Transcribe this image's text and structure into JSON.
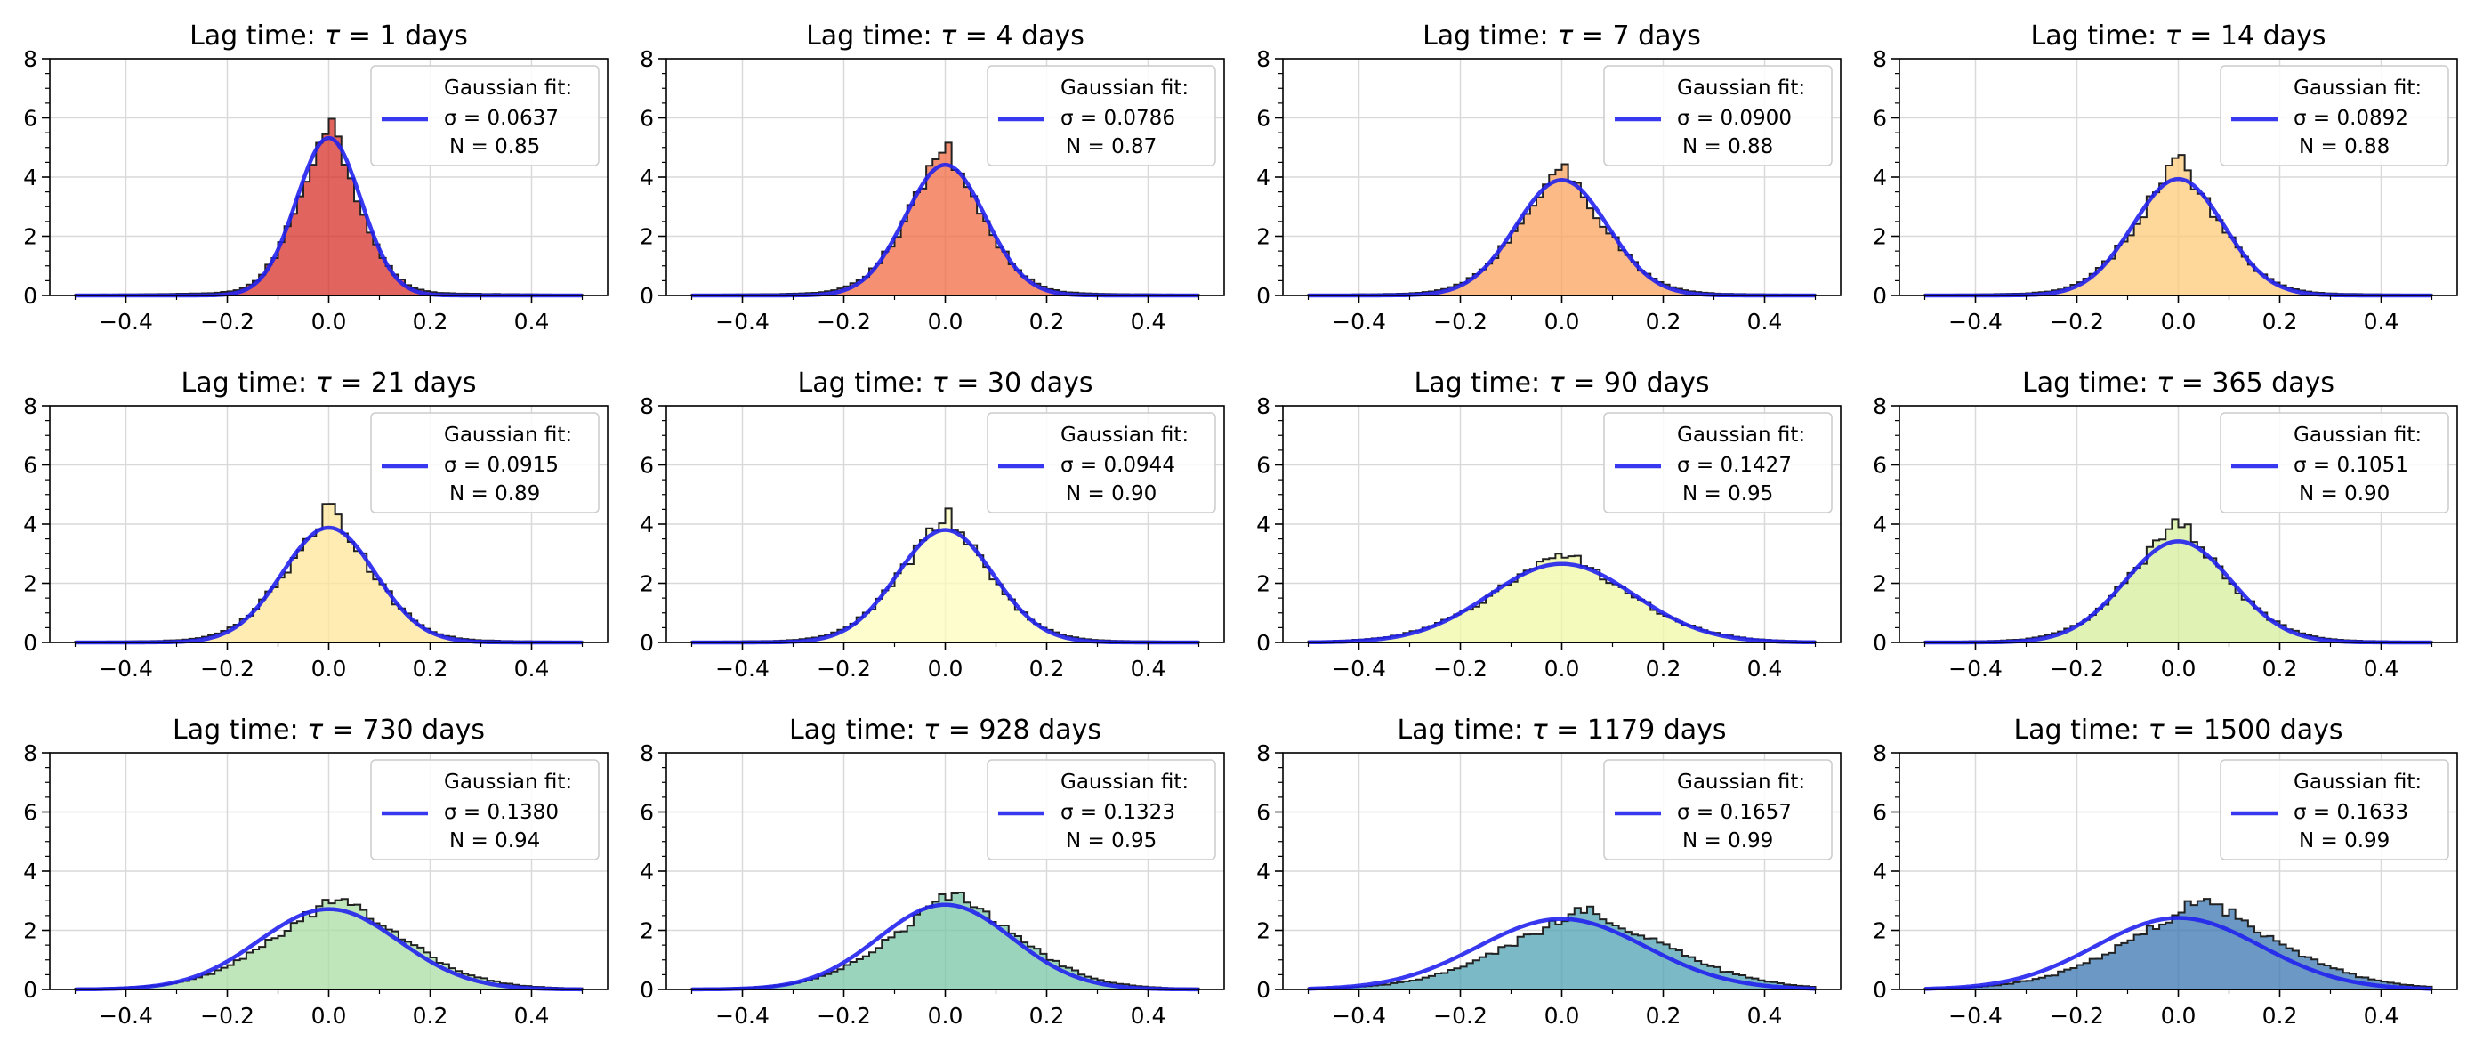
{
  "chart_data": [
    {
      "type": "histogram",
      "title_prefix": "Lag time: ",
      "tau_symbol": "τ",
      "tau_days": 1,
      "title_suffix": " days",
      "legend": {
        "title": "Gaussian fit:",
        "sigma_label": "σ = 0.0637",
        "n_label": "N = 0.85"
      },
      "fit": {
        "sigma": 0.0637,
        "N": 0.85
      },
      "peak_density": 5.9,
      "bar_color": "#d7302a",
      "xlim": [
        -0.55,
        0.55
      ],
      "ylim": [
        0,
        8
      ],
      "xticks": [
        "−0.4",
        "−0.2",
        "0.0",
        "0.2",
        "0.4"
      ],
      "yticks": [
        "0",
        "2",
        "4",
        "6",
        "8"
      ],
      "grid": true,
      "legend_position": "top-right"
    },
    {
      "type": "histogram",
      "title_prefix": "Lag time: ",
      "tau_symbol": "τ",
      "tau_days": 4,
      "title_suffix": " days",
      "legend": {
        "title": "Gaussian fit:",
        "sigma_label": "σ = 0.0786",
        "n_label": "N = 0.87"
      },
      "fit": {
        "sigma": 0.0786,
        "N": 0.87
      },
      "peak_density": 5.0,
      "bar_color": "#f16c43",
      "xlim": [
        -0.55,
        0.55
      ],
      "ylim": [
        0,
        8
      ],
      "xticks": [
        "−0.4",
        "−0.2",
        "0.0",
        "0.2",
        "0.4"
      ],
      "yticks": [
        "0",
        "2",
        "4",
        "6",
        "8"
      ],
      "grid": true,
      "legend_position": "top-right"
    },
    {
      "type": "histogram",
      "title_prefix": "Lag time: ",
      "tau_symbol": "τ",
      "tau_days": 7,
      "title_suffix": " days",
      "legend": {
        "title": "Gaussian fit:",
        "sigma_label": "σ = 0.0900",
        "n_label": "N = 0.88"
      },
      "fit": {
        "sigma": 0.09,
        "N": 0.88
      },
      "peak_density": 4.2,
      "bar_color": "#fba35d",
      "xlim": [
        -0.55,
        0.55
      ],
      "ylim": [
        0,
        8
      ],
      "xticks": [
        "−0.4",
        "−0.2",
        "0.0",
        "0.2",
        "0.4"
      ],
      "yticks": [
        "0",
        "2",
        "4",
        "6",
        "8"
      ],
      "grid": true,
      "legend_position": "top-right"
    },
    {
      "type": "histogram",
      "title_prefix": "Lag time: ",
      "tau_symbol": "τ",
      "tau_days": 14,
      "title_suffix": " days",
      "legend": {
        "title": "Gaussian fit:",
        "sigma_label": "σ = 0.0892",
        "n_label": "N = 0.88"
      },
      "fit": {
        "sigma": 0.0892,
        "N": 0.88
      },
      "peak_density": 4.5,
      "bar_color": "#fdc97a",
      "xlim": [
        -0.55,
        0.55
      ],
      "ylim": [
        0,
        8
      ],
      "xticks": [
        "−0.4",
        "−0.2",
        "0.0",
        "0.2",
        "0.4"
      ],
      "yticks": [
        "0",
        "2",
        "4",
        "6",
        "8"
      ],
      "grid": true,
      "legend_position": "top-right"
    },
    {
      "type": "histogram",
      "title_prefix": "Lag time: ",
      "tau_symbol": "τ",
      "tau_days": 21,
      "title_suffix": " days",
      "legend": {
        "title": "Gaussian fit:",
        "sigma_label": "σ = 0.0915",
        "n_label": "N = 0.89"
      },
      "fit": {
        "sigma": 0.0915,
        "N": 0.89
      },
      "peak_density": 4.4,
      "bar_color": "#fee59a",
      "xlim": [
        -0.55,
        0.55
      ],
      "ylim": [
        0,
        8
      ],
      "xticks": [
        "−0.4",
        "−0.2",
        "0.0",
        "0.2",
        "0.4"
      ],
      "yticks": [
        "0",
        "2",
        "4",
        "6",
        "8"
      ],
      "grid": true,
      "legend_position": "top-right"
    },
    {
      "type": "histogram",
      "title_prefix": "Lag time: ",
      "tau_symbol": "τ",
      "tau_days": 30,
      "title_suffix": " days",
      "legend": {
        "title": "Gaussian fit:",
        "sigma_label": "σ = 0.0944",
        "n_label": "N = 0.90"
      },
      "fit": {
        "sigma": 0.0944,
        "N": 0.9
      },
      "peak_density": 4.2,
      "bar_color": "#fefcbe",
      "xlim": [
        -0.55,
        0.55
      ],
      "ylim": [
        0,
        8
      ],
      "xticks": [
        "−0.4",
        "−0.2",
        "0.0",
        "0.2",
        "0.4"
      ],
      "yticks": [
        "0",
        "2",
        "4",
        "6",
        "8"
      ],
      "grid": true,
      "legend_position": "top-right"
    },
    {
      "type": "histogram",
      "title_prefix": "Lag time: ",
      "tau_symbol": "τ",
      "tau_days": 90,
      "title_suffix": " days",
      "legend": {
        "title": "Gaussian fit:",
        "sigma_label": "σ = 0.1427",
        "n_label": "N = 0.95"
      },
      "fit": {
        "sigma": 0.1427,
        "N": 0.95
      },
      "peak_density": 2.95,
      "bar_color": "#eff8a6",
      "xlim": [
        -0.55,
        0.55
      ],
      "ylim": [
        0,
        8
      ],
      "xticks": [
        "−0.4",
        "−0.2",
        "0.0",
        "0.2",
        "0.4"
      ],
      "yticks": [
        "0",
        "2",
        "4",
        "6",
        "8"
      ],
      "grid": true,
      "legend_position": "top-right"
    },
    {
      "type": "histogram",
      "title_prefix": "Lag time: ",
      "tau_symbol": "τ",
      "tau_days": 365,
      "title_suffix": " days",
      "legend": {
        "title": "Gaussian fit:",
        "sigma_label": "σ = 0.1051",
        "n_label": "N = 0.90"
      },
      "fit": {
        "sigma": 0.1051,
        "N": 0.9
      },
      "peak_density": 4.1,
      "bar_color": "#d5ee9b",
      "xlim": [
        -0.55,
        0.55
      ],
      "ylim": [
        0,
        8
      ],
      "xticks": [
        "−0.4",
        "−0.2",
        "0.0",
        "0.2",
        "0.4"
      ],
      "yticks": [
        "0",
        "2",
        "4",
        "6",
        "8"
      ],
      "grid": true,
      "legend_position": "top-right"
    },
    {
      "type": "histogram",
      "title_prefix": "Lag time: ",
      "tau_symbol": "τ",
      "tau_days": 730,
      "title_suffix": " days",
      "legend": {
        "title": "Gaussian fit:",
        "sigma_label": "σ = 0.1380",
        "n_label": "N = 0.94"
      },
      "fit": {
        "sigma": 0.138,
        "N": 0.94
      },
      "peak_density": 3.05,
      "bar_color": "#a9dca3",
      "xlim": [
        -0.55,
        0.55
      ],
      "ylim": [
        0,
        8
      ],
      "xticks": [
        "−0.4",
        "−0.2",
        "0.0",
        "0.2",
        "0.4"
      ],
      "yticks": [
        "0",
        "2",
        "4",
        "6",
        "8"
      ],
      "grid": true,
      "legend_position": "top-right"
    },
    {
      "type": "histogram",
      "title_prefix": "Lag time: ",
      "tau_symbol": "τ",
      "tau_days": 928,
      "title_suffix": " days",
      "legend": {
        "title": "Gaussian fit:",
        "sigma_label": "σ = 0.1323",
        "n_label": "N = 0.95"
      },
      "fit": {
        "sigma": 0.1323,
        "N": 0.95
      },
      "peak_density": 3.15,
      "bar_color": "#78c6a5",
      "xlim": [
        -0.55,
        0.55
      ],
      "ylim": [
        0,
        8
      ],
      "xticks": [
        "−0.4",
        "−0.2",
        "0.0",
        "0.2",
        "0.4"
      ],
      "yticks": [
        "0",
        "2",
        "4",
        "6",
        "8"
      ],
      "grid": true,
      "legend_position": "top-right"
    },
    {
      "type": "histogram",
      "title_prefix": "Lag time: ",
      "tau_symbol": "τ",
      "tau_days": 1179,
      "title_suffix": " days",
      "legend": {
        "title": "Gaussian fit:",
        "sigma_label": "σ = 0.1657",
        "n_label": "N = 0.99"
      },
      "fit": {
        "sigma": 0.1657,
        "N": 0.99
      },
      "peak_density": 2.55,
      "bar_color": "#4ea2b1",
      "xlim": [
        -0.55,
        0.55
      ],
      "ylim": [
        0,
        8
      ],
      "xticks": [
        "−0.4",
        "−0.2",
        "0.0",
        "0.2",
        "0.4"
      ],
      "yticks": [
        "0",
        "2",
        "4",
        "6",
        "8"
      ],
      "grid": true,
      "legend_position": "top-right"
    },
    {
      "type": "histogram",
      "title_prefix": "Lag time: ",
      "tau_symbol": "τ",
      "tau_days": 1500,
      "title_suffix": " days",
      "legend": {
        "title": "Gaussian fit:",
        "sigma_label": "σ = 0.1633",
        "n_label": "N = 0.99"
      },
      "fit": {
        "sigma": 0.1633,
        "N": 0.99
      },
      "peak_density": 3.0,
      "bar_color": "#3a75b2",
      "xlim": [
        -0.55,
        0.55
      ],
      "ylim": [
        0,
        8
      ],
      "xticks": [
        "−0.4",
        "−0.2",
        "0.0",
        "0.2",
        "0.4"
      ],
      "yticks": [
        "0",
        "2",
        "4",
        "6",
        "8"
      ],
      "grid": true,
      "legend_position": "top-right"
    }
  ],
  "style": {
    "fit_color": "#2222ee",
    "edge_color": "#222222",
    "grid_color": "#d9d9d9"
  }
}
